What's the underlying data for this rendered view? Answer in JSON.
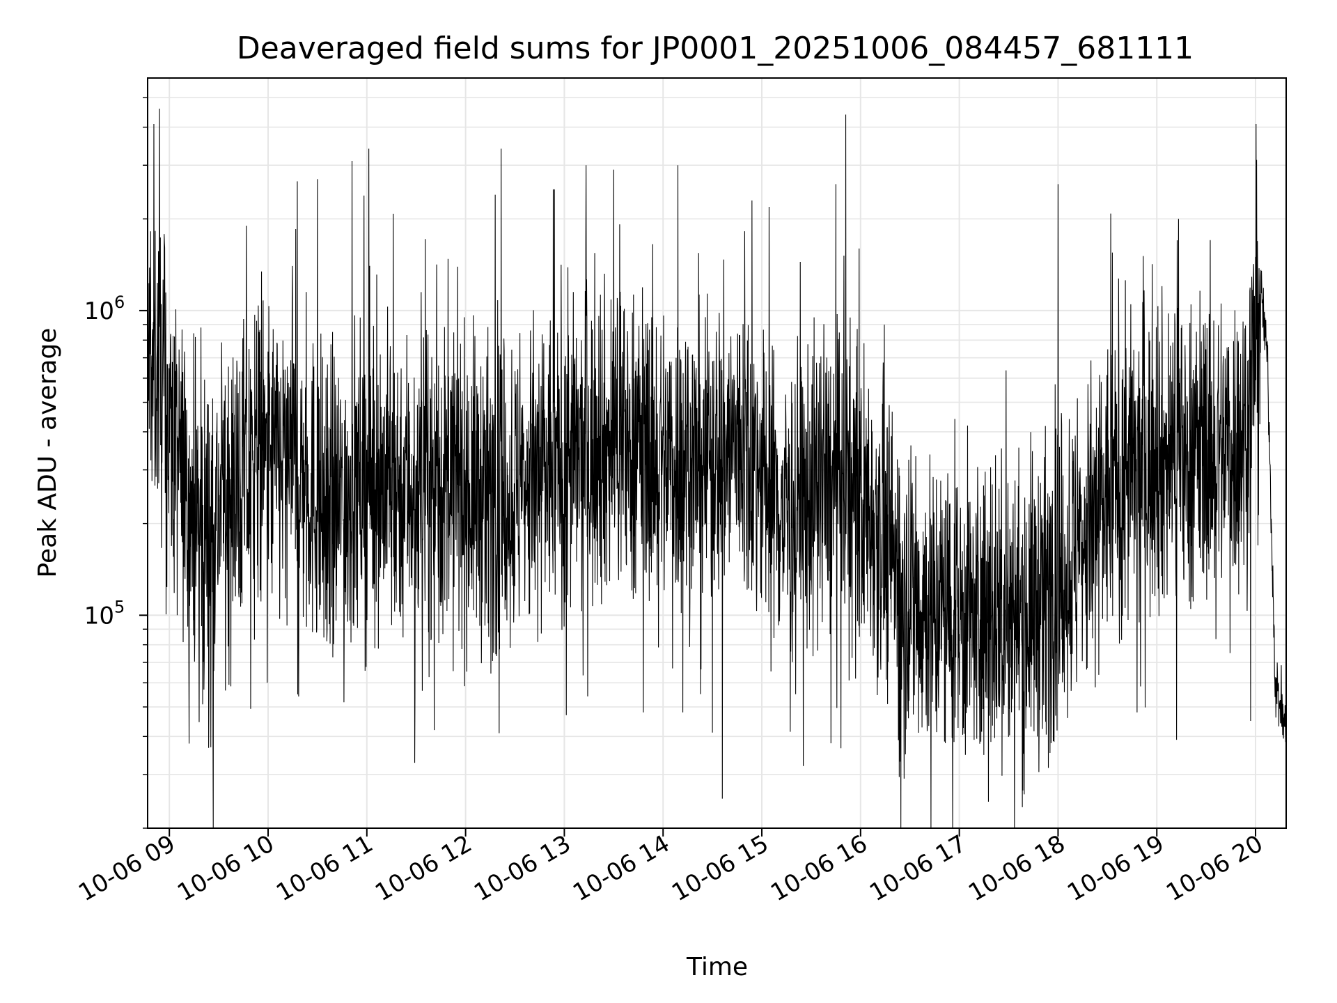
{
  "chart_data": {
    "type": "line",
    "title": "Deaveraged field sums for JP0001_20251006_084457_681111",
    "xlabel": "Time",
    "ylabel": "Peak ADU - average",
    "yscale": "log",
    "ylim": [
      20000,
      5800000
    ],
    "xlim_hours": [
      8.78,
      20.31
    ],
    "grid": true,
    "x_tick_labels": [
      "10-06 09",
      "10-06 10",
      "10-06 11",
      "10-06 12",
      "10-06 13",
      "10-06 14",
      "10-06 15",
      "10-06 16",
      "10-06 17",
      "10-06 18",
      "10-06 19",
      "10-06 20"
    ],
    "x_tick_hours": [
      9,
      10,
      11,
      12,
      13,
      14,
      15,
      16,
      17,
      18,
      19,
      20
    ],
    "y_tick_exponents": [
      "5",
      "6"
    ],
    "y_tick_values": [
      100000,
      1000000
    ],
    "series": [
      {
        "name": "deaveraged field sum",
        "color": "#000000",
        "baseline_profile": {
          "hours": [
            8.78,
            8.9,
            9.05,
            9.3,
            9.6,
            10.0,
            10.3,
            10.6,
            11.0,
            11.5,
            12.0,
            12.4,
            12.8,
            13.2,
            13.6,
            14.0,
            14.4,
            14.8,
            15.2,
            15.5,
            15.8,
            16.2,
            16.5,
            16.8,
            17.2,
            17.5,
            17.8,
            18.2,
            18.6,
            19.0,
            19.5,
            19.9,
            20.05,
            20.12,
            20.2,
            20.31
          ],
          "median_values": [
            700000,
            650000,
            350000,
            180000,
            250000,
            320000,
            300000,
            220000,
            280000,
            270000,
            260000,
            240000,
            300000,
            330000,
            380000,
            330000,
            320000,
            380000,
            220000,
            250000,
            280000,
            200000,
            110000,
            105000,
            100000,
            95000,
            110000,
            160000,
            280000,
            320000,
            350000,
            380000,
            1200000,
            700000,
            60000,
            42000
          ]
        },
        "spikes": [
          {
            "hour": 8.9,
            "value": 4600000
          },
          {
            "hour": 9.32,
            "value": 880000
          },
          {
            "hour": 9.78,
            "value": 1900000
          },
          {
            "hour": 10.28,
            "value": 1850000
          },
          {
            "hour": 10.5,
            "value": 2700000
          },
          {
            "hour": 10.85,
            "value": 3100000
          },
          {
            "hour": 11.02,
            "value": 3400000
          },
          {
            "hour": 11.55,
            "value": 1150000
          },
          {
            "hour": 12.3,
            "value": 2400000
          },
          {
            "hour": 12.36,
            "value": 3400000
          },
          {
            "hour": 12.9,
            "value": 2500000
          },
          {
            "hour": 13.22,
            "value": 3000000
          },
          {
            "hour": 13.5,
            "value": 2900000
          },
          {
            "hour": 14.15,
            "value": 3000000
          },
          {
            "hour": 14.6,
            "value": 2400000
          },
          {
            "hour": 14.9,
            "value": 2300000
          },
          {
            "hour": 15.75,
            "value": 2600000
          },
          {
            "hour": 15.85,
            "value": 4400000
          },
          {
            "hour": 18.0,
            "value": 2600000
          },
          {
            "hour": 18.55,
            "value": 1550000
          },
          {
            "hour": 19.22,
            "value": 2000000
          },
          {
            "hour": 20.0,
            "value": 1500000
          }
        ],
        "dips": [
          {
            "hour": 9.35,
            "value": 57000
          },
          {
            "hour": 10.3,
            "value": 55000
          },
          {
            "hour": 12.34,
            "value": 41000
          },
          {
            "hour": 13.02,
            "value": 47000
          },
          {
            "hour": 13.8,
            "value": 48000
          },
          {
            "hour": 14.2,
            "value": 48000
          },
          {
            "hour": 14.6,
            "value": 25000
          },
          {
            "hour": 15.42,
            "value": 32000
          },
          {
            "hour": 15.7,
            "value": 38000
          },
          {
            "hour": 16.4,
            "value": 45000
          },
          {
            "hour": 17.15,
            "value": 39000
          },
          {
            "hour": 18.8,
            "value": 48000
          },
          {
            "hour": 19.2,
            "value": 39000
          },
          {
            "hour": 19.95,
            "value": 45000
          },
          {
            "hour": 20.31,
            "value": 38000
          }
        ]
      }
    ]
  }
}
